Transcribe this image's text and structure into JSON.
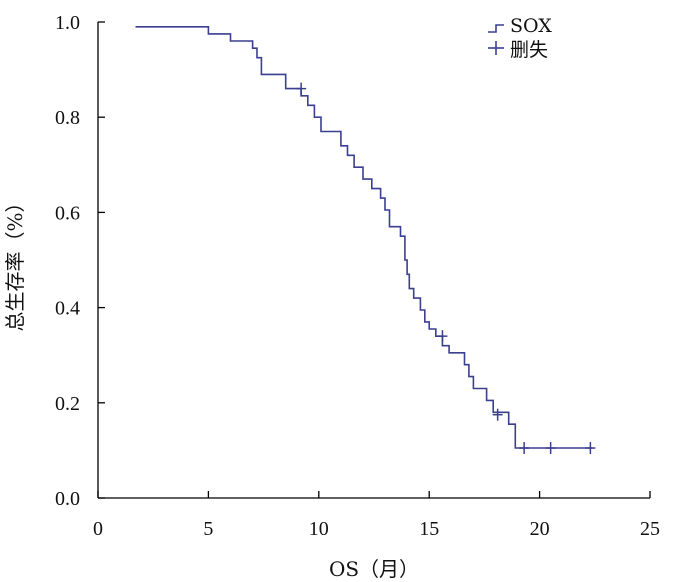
{
  "chart_data": {
    "type": "line",
    "subtype": "kaplan-meier step",
    "xlabel": "OS（月）",
    "ylabel": "总生存率（%）",
    "xlim": [
      0,
      25
    ],
    "ylim": [
      0,
      1.0
    ],
    "x_ticks": [
      "0",
      "5",
      "10",
      "15",
      "20",
      "25"
    ],
    "y_ticks": [
      "0.0",
      "0.2",
      "0.4",
      "0.6",
      "0.8",
      "1.0"
    ],
    "grid": false,
    "legend_position": "top-right",
    "color": "#3b3f8f",
    "series": [
      {
        "name": "SOX",
        "x": [
          1.7,
          5.0,
          5.0,
          6.0,
          6.0,
          7.0,
          7.0,
          7.2,
          7.2,
          7.4,
          7.4,
          8.5,
          8.5,
          9.2,
          9.2,
          9.5,
          9.5,
          9.8,
          9.8,
          10.1,
          10.1,
          11.0,
          11.0,
          11.3,
          11.3,
          11.6,
          11.6,
          12.0,
          12.0,
          12.4,
          12.4,
          12.8,
          12.8,
          13.0,
          13.0,
          13.2,
          13.2,
          13.7,
          13.7,
          13.9,
          13.9,
          14.0,
          14.0,
          14.1,
          14.1,
          14.3,
          14.3,
          14.6,
          14.6,
          14.8,
          14.8,
          15.0,
          15.0,
          15.3,
          15.3,
          15.6,
          15.6,
          15.9,
          15.9,
          16.6,
          16.6,
          16.8,
          16.8,
          17.0,
          17.0,
          17.6,
          17.6,
          17.9,
          17.9,
          18.6,
          18.6,
          18.9,
          18.9,
          22.4
        ],
        "y": [
          0.99,
          0.99,
          0.975,
          0.975,
          0.96,
          0.96,
          0.945,
          0.945,
          0.925,
          0.925,
          0.89,
          0.89,
          0.86,
          0.86,
          0.845,
          0.845,
          0.825,
          0.825,
          0.8,
          0.8,
          0.77,
          0.77,
          0.74,
          0.74,
          0.72,
          0.72,
          0.695,
          0.695,
          0.67,
          0.67,
          0.65,
          0.65,
          0.63,
          0.63,
          0.605,
          0.605,
          0.57,
          0.57,
          0.55,
          0.55,
          0.5,
          0.5,
          0.47,
          0.47,
          0.44,
          0.44,
          0.42,
          0.42,
          0.395,
          0.395,
          0.37,
          0.37,
          0.355,
          0.355,
          0.34,
          0.34,
          0.32,
          0.32,
          0.305,
          0.305,
          0.28,
          0.28,
          0.255,
          0.255,
          0.23,
          0.23,
          0.205,
          0.205,
          0.18,
          0.18,
          0.155,
          0.155,
          0.105,
          0.105
        ]
      },
      {
        "name": "删失",
        "censored_x": [
          9.2,
          15.6,
          18.1,
          19.3,
          20.5,
          22.3
        ],
        "censored_y": [
          0.86,
          0.34,
          0.175,
          0.105,
          0.105,
          0.105
        ]
      }
    ]
  },
  "icons": {
    "legend_step": "step-line-icon",
    "legend_censor": "plus-marker-icon"
  }
}
